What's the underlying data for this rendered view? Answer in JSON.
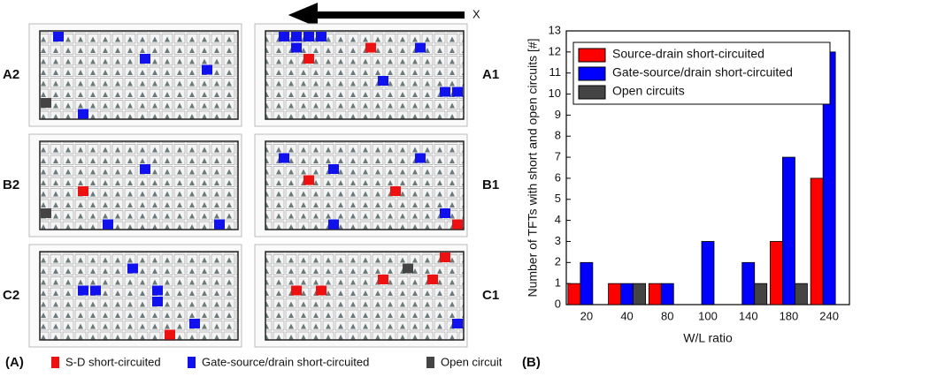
{
  "panel_a": {
    "arrow_label": "X",
    "maps": [
      "A2",
      "A1",
      "B2",
      "B1",
      "C2",
      "C1"
    ],
    "panel_label": "(A)",
    "legend": [
      {
        "name": "S-D short-circuited",
        "color": "#ee1111"
      },
      {
        "name": "Gate-source/drain short-circuited",
        "color": "#1111ee"
      },
      {
        "name": "Open circuit",
        "color": "#444444"
      }
    ]
  },
  "chart_data": {
    "type": "bar",
    "panel_label": "(B)",
    "xlabel": "W/L ratio",
    "ylabel": "Number of TFTs with short and open circuits [#]",
    "categories": [
      "20",
      "40",
      "80",
      "100",
      "140",
      "180",
      "240"
    ],
    "series": [
      {
        "name": "Source-drain short-circuited",
        "color": "#ff0000",
        "values": [
          1,
          1,
          1,
          0,
          0,
          3,
          6
        ]
      },
      {
        "name": "Gate-source/drain short-circuited",
        "color": "#0000ff",
        "values": [
          2,
          1,
          1,
          3,
          2,
          7,
          12
        ]
      },
      {
        "name": "Open circuits",
        "color": "#444444",
        "values": [
          0,
          1,
          0,
          0,
          1,
          1,
          0
        ]
      }
    ],
    "ylim": [
      0,
      13
    ],
    "yticks": [
      0,
      1,
      2,
      3,
      4,
      5,
      6,
      7,
      8,
      9,
      10,
      11,
      12,
      13
    ],
    "legend": "upper left"
  }
}
